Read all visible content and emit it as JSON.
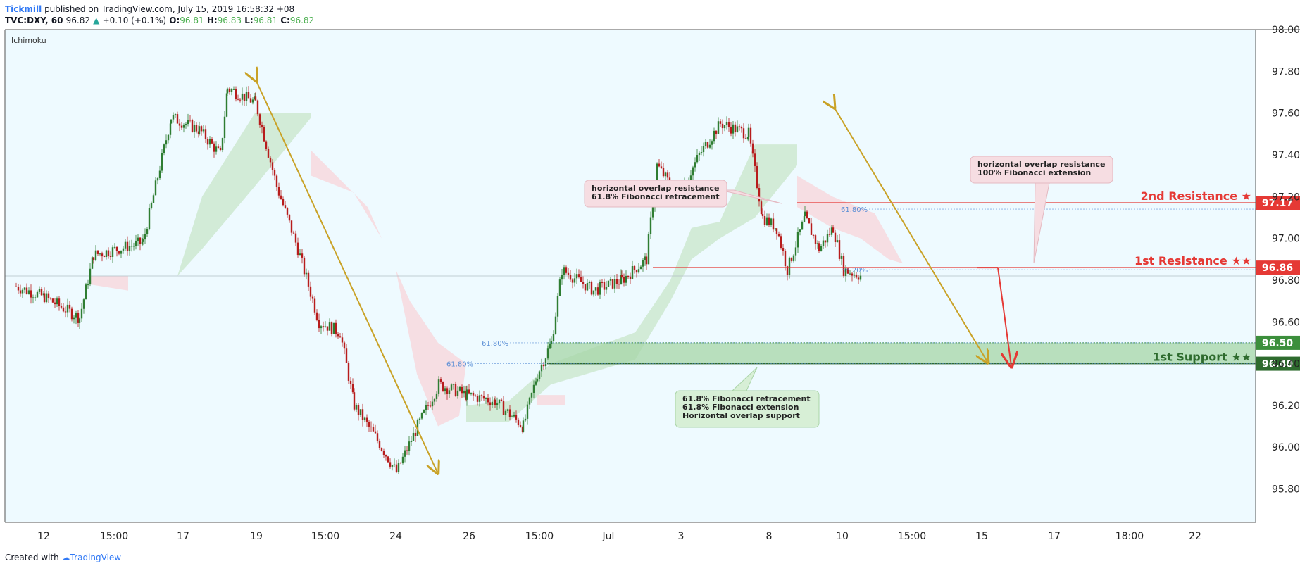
{
  "header": {
    "publisher": "Tickmill",
    "published_text": " published on TradingView.com, July 15, 2019 16:58:32 +08",
    "symbol": "TVC:DXY, 60",
    "last": "96.82",
    "change_arrow": "▲",
    "change": "+0.10 (+0.1%)",
    "o_label": "O:",
    "o_value": "96.81",
    "h_label": "H:",
    "h_value": "96.83",
    "l_label": "L:",
    "l_value": "96.81",
    "c_label": "C:",
    "c_value": "96.82"
  },
  "indicator_label": "Ichimoku",
  "footer": {
    "created_with": "Created with",
    "tradingview": "TradingView"
  },
  "colors": {
    "background": "#eefaff",
    "resistance": "#e53935",
    "support_dark": "#2e6b2e",
    "support_mid": "#3c8f3c",
    "support_zone": "#a5d6a7",
    "arrow_gold": "#c9a227",
    "cloud_green": "#c8e6c9",
    "cloud_red": "#f8d7dc",
    "candle_up": "#2e7d32",
    "candle_down": "#b71c1c",
    "fib_label": "#5b8fd6"
  },
  "chart_data": {
    "type": "candlestick",
    "title": "",
    "xlabel": "",
    "ylabel": "",
    "ylim": [
      95.64,
      98.0
    ],
    "yticks": [
      "98.00",
      "97.80",
      "97.60",
      "97.40",
      "97.20",
      "97.00",
      "96.80",
      "96.60",
      "96.40",
      "96.20",
      "96.00",
      "95.80"
    ],
    "xticks": [
      "12",
      "15:00",
      "17",
      "19",
      "15:00",
      "24",
      "26",
      "15:00",
      "Jul",
      "3",
      "8",
      "10",
      "15:00",
      "15",
      "17",
      "18:00",
      "22"
    ],
    "close_path": [
      [
        0,
        96.77
      ],
      [
        40,
        96.72
      ],
      [
        90,
        96.62
      ],
      [
        110,
        96.92
      ],
      [
        180,
        96.98
      ],
      [
        220,
        97.58
      ],
      [
        260,
        97.52
      ],
      [
        290,
        97.4
      ],
      [
        300,
        97.72
      ],
      [
        340,
        97.65
      ],
      [
        370,
        97.25
      ],
      [
        400,
        96.95
      ],
      [
        430,
        96.6
      ],
      [
        460,
        96.55
      ],
      [
        480,
        96.2
      ],
      [
        510,
        96.05
      ],
      [
        540,
        95.88
      ],
      [
        570,
        96.1
      ],
      [
        600,
        96.3
      ],
      [
        640,
        96.25
      ],
      [
        680,
        96.22
      ],
      [
        720,
        96.1
      ],
      [
        740,
        96.35
      ],
      [
        760,
        96.5
      ],
      [
        775,
        96.85
      ],
      [
        820,
        96.75
      ],
      [
        860,
        96.8
      ],
      [
        895,
        96.9
      ],
      [
        910,
        97.35
      ],
      [
        940,
        97.2
      ],
      [
        970,
        97.4
      ],
      [
        1000,
        97.55
      ],
      [
        1040,
        97.5
      ],
      [
        1060,
        97.1
      ],
      [
        1080,
        97.05
      ],
      [
        1095,
        96.85
      ],
      [
        1120,
        97.1
      ],
      [
        1140,
        96.95
      ],
      [
        1160,
        97.05
      ],
      [
        1175,
        96.85
      ],
      [
        1200,
        96.82
      ]
    ],
    "ichimoku_cloud_green": [
      [
        [
          170,
          96.82
        ],
        [
          230,
          96.82
        ],
        [
          265,
          97.2
        ],
        [
          340,
          97.6
        ],
        [
          420,
          97.6
        ],
        [
          420,
          97.58
        ],
        [
          340,
          97.25
        ],
        [
          265,
          96.95
        ],
        [
          230,
          96.82
        ]
      ],
      [
        [
          640,
          96.2
        ],
        [
          700,
          96.22
        ],
        [
          760,
          96.4
        ],
        [
          880,
          96.55
        ],
        [
          930,
          96.8
        ],
        [
          960,
          97.05
        ],
        [
          1000,
          97.08
        ],
        [
          1050,
          97.45
        ],
        [
          1110,
          97.45
        ],
        [
          1110,
          97.35
        ],
        [
          1050,
          97.1
        ],
        [
          1000,
          97.0
        ],
        [
          960,
          96.9
        ],
        [
          930,
          96.7
        ],
        [
          880,
          96.42
        ],
        [
          760,
          96.3
        ],
        [
          700,
          96.12
        ],
        [
          640,
          96.12
        ]
      ]
    ],
    "ichimoku_cloud_red": [
      [
        [
          105,
          96.78
        ],
        [
          160,
          96.75
        ],
        [
          160,
          96.82
        ],
        [
          105,
          96.82
        ]
      ],
      [
        [
          420,
          97.42
        ],
        [
          500,
          97.15
        ],
        [
          540,
          96.85
        ],
        [
          570,
          96.35
        ],
        [
          600,
          96.1
        ],
        [
          630,
          96.15
        ],
        [
          640,
          96.4
        ],
        [
          600,
          96.5
        ],
        [
          560,
          96.7
        ],
        [
          520,
          97.0
        ],
        [
          480,
          97.22
        ],
        [
          420,
          97.3
        ]
      ],
      [
        [
          740,
          96.25
        ],
        [
          780,
          96.25
        ],
        [
          780,
          96.2
        ],
        [
          740,
          96.2
        ]
      ],
      [
        [
          1110,
          97.3
        ],
        [
          1160,
          97.2
        ],
        [
          1220,
          97.12
        ],
        [
          1260,
          96.88
        ],
        [
          1240,
          96.9
        ],
        [
          1200,
          97.0
        ],
        [
          1160,
          97.05
        ],
        [
          1110,
          97.15
        ]
      ]
    ],
    "levels": [
      {
        "name": "2nd Resistance ★",
        "value": "97.17",
        "price": 97.17,
        "kind": "resistance",
        "from_x": 1110
      },
      {
        "name": "1st Resistance ★★",
        "value": "96.86",
        "price": 96.86,
        "kind": "resistance",
        "from_x": 905
      },
      {
        "name": "",
        "value": "96.50",
        "price": 96.5,
        "kind": "support_top",
        "from_x": 755
      },
      {
        "name": "1st Support ★★",
        "value": "96.40",
        "price": 96.4,
        "kind": "support",
        "from_x": 755
      }
    ],
    "fib_labels": [
      {
        "text": "61.80%",
        "price": 97.14,
        "x": 1172
      },
      {
        "text": "38.20%",
        "price": 96.85,
        "x": 1172
      },
      {
        "text": "61.80%",
        "price": 96.5,
        "x": 662
      },
      {
        "text": "61.80%",
        "price": 96.4,
        "x": 612
      }
    ],
    "annotations": [
      {
        "lines": [
          "horizontal overlap resistance",
          "61.8% Fibonacci retracement"
        ],
        "kind": "resistance"
      },
      {
        "lines": [
          "horizontal overlap resistance",
          "100% Fibonacci extension"
        ],
        "kind": "resistance"
      },
      {
        "lines": [
          "61.8% Fibonacci retracement",
          "61.8% Fibonacci extension",
          "Horizontal overlap support"
        ],
        "kind": "support"
      }
    ]
  }
}
